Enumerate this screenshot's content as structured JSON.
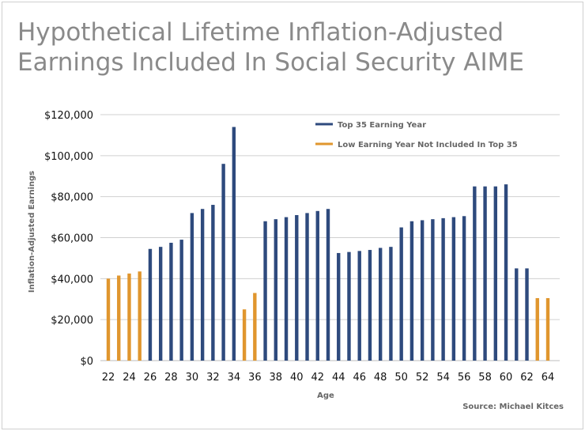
{
  "chart_data": {
    "type": "bar",
    "title": "Hypothetical Lifetime Inflation-Adjusted Earnings Included In Social Security AIME",
    "title_lines": [
      "Hypothetical Lifetime Inflation-Adjusted",
      "Earnings Included In Social Security AIME"
    ],
    "xlabel": "Age",
    "ylabel": "Inflation-Adjusted Earnings",
    "source": "Source: Michael Kitces",
    "ylim": [
      0,
      120000
    ],
    "yticks": [
      0,
      20000,
      40000,
      60000,
      80000,
      100000,
      120000
    ],
    "ytick_labels": [
      "$0",
      "$20,000",
      "$40,000",
      "$60,000",
      "$80,000",
      "$100,000",
      "$120,000"
    ],
    "xtick_labels": [
      "22",
      "24",
      "26",
      "28",
      "30",
      "32",
      "34",
      "36",
      "38",
      "40",
      "42",
      "44",
      "46",
      "48",
      "50",
      "52",
      "54",
      "56",
      "58",
      "60",
      "62",
      "64"
    ],
    "grid": true,
    "legend_placement": "top-right",
    "legend": [
      {
        "name": "Top 35 Earning Year",
        "color": "#2e4a7d"
      },
      {
        "name": "Low Earning Year Not Included In Top 35",
        "color": "#e0962e"
      }
    ],
    "ages": [
      22,
      23,
      24,
      25,
      26,
      27,
      28,
      29,
      30,
      31,
      32,
      33,
      34,
      35,
      36,
      37,
      38,
      39,
      40,
      41,
      42,
      43,
      44,
      45,
      46,
      47,
      48,
      49,
      50,
      51,
      52,
      53,
      54,
      55,
      56,
      57,
      58,
      59,
      60,
      61,
      62,
      63,
      64
    ],
    "values": [
      40000,
      41500,
      42500,
      43500,
      54500,
      55500,
      57500,
      59000,
      72000,
      74000,
      76000,
      96000,
      114000,
      25000,
      33000,
      68000,
      69000,
      70000,
      71000,
      72000,
      73000,
      74000,
      52500,
      53000,
      53500,
      54000,
      55000,
      55500,
      65000,
      68000,
      68500,
      69000,
      69500,
      70000,
      70500,
      85000,
      85000,
      85000,
      86000,
      45000,
      45000,
      30500,
      30500
    ],
    "category": [
      "low",
      "low",
      "low",
      "low",
      "top",
      "top",
      "top",
      "top",
      "top",
      "top",
      "top",
      "top",
      "top",
      "low",
      "low",
      "top",
      "top",
      "top",
      "top",
      "top",
      "top",
      "top",
      "top",
      "top",
      "top",
      "top",
      "top",
      "top",
      "top",
      "top",
      "top",
      "top",
      "top",
      "top",
      "top",
      "top",
      "top",
      "top",
      "top",
      "top",
      "top",
      "low",
      "low"
    ]
  }
}
